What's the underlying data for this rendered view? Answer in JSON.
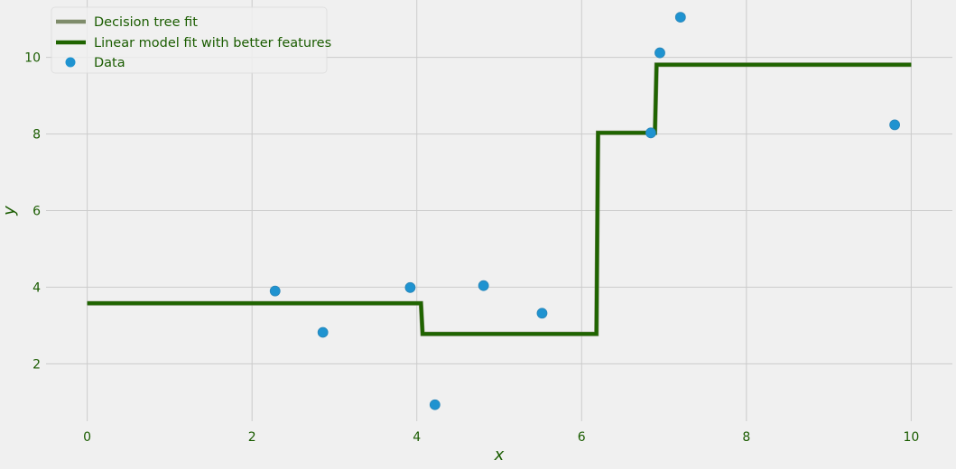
{
  "colors": {
    "background": "#f0f0f0",
    "grid": "#cbcbcb",
    "text": "#1a5c00",
    "tree_fit": "#7f8c6b",
    "linear_fit": "#1f6400",
    "data_point": "#1f93d0",
    "legend_bg": "#f0f0f0",
    "legend_border": "#dddddd"
  },
  "chart_data": {
    "type": "line",
    "title": "",
    "xlabel": "x",
    "ylabel": "y",
    "xlim": [
      -0.5,
      10.5
    ],
    "ylim": [
      0.5,
      11.5
    ],
    "xticks": [
      0,
      2,
      4,
      6,
      8,
      10
    ],
    "yticks": [
      2,
      4,
      6,
      8,
      10
    ],
    "grid": true,
    "legend_position": "top-left",
    "series": [
      {
        "name": "Decision tree fit",
        "kind": "step-line",
        "color": "#7f8c6b",
        "x": [
          0,
          4.05,
          4.07,
          6.18,
          6.2,
          6.89,
          6.91,
          10
        ],
        "y": [
          3.58,
          3.58,
          2.78,
          2.78,
          8.03,
          8.03,
          9.81,
          9.81
        ]
      },
      {
        "name": "Linear model fit with better features",
        "kind": "step-line",
        "color": "#1f6400",
        "x": [
          0,
          4.05,
          4.07,
          6.18,
          6.2,
          6.89,
          6.91,
          10
        ],
        "y": [
          3.58,
          3.58,
          2.78,
          2.78,
          8.03,
          8.03,
          9.81,
          9.81
        ]
      },
      {
        "name": "Data",
        "kind": "scatter",
        "color": "#1f93d0",
        "x": [
          2.28,
          2.86,
          3.92,
          4.22,
          4.81,
          5.52,
          6.84,
          6.95,
          7.2,
          9.8
        ],
        "y": [
          3.9,
          2.82,
          3.99,
          0.93,
          4.04,
          3.32,
          8.03,
          10.12,
          11.05,
          8.24
        ]
      }
    ]
  }
}
